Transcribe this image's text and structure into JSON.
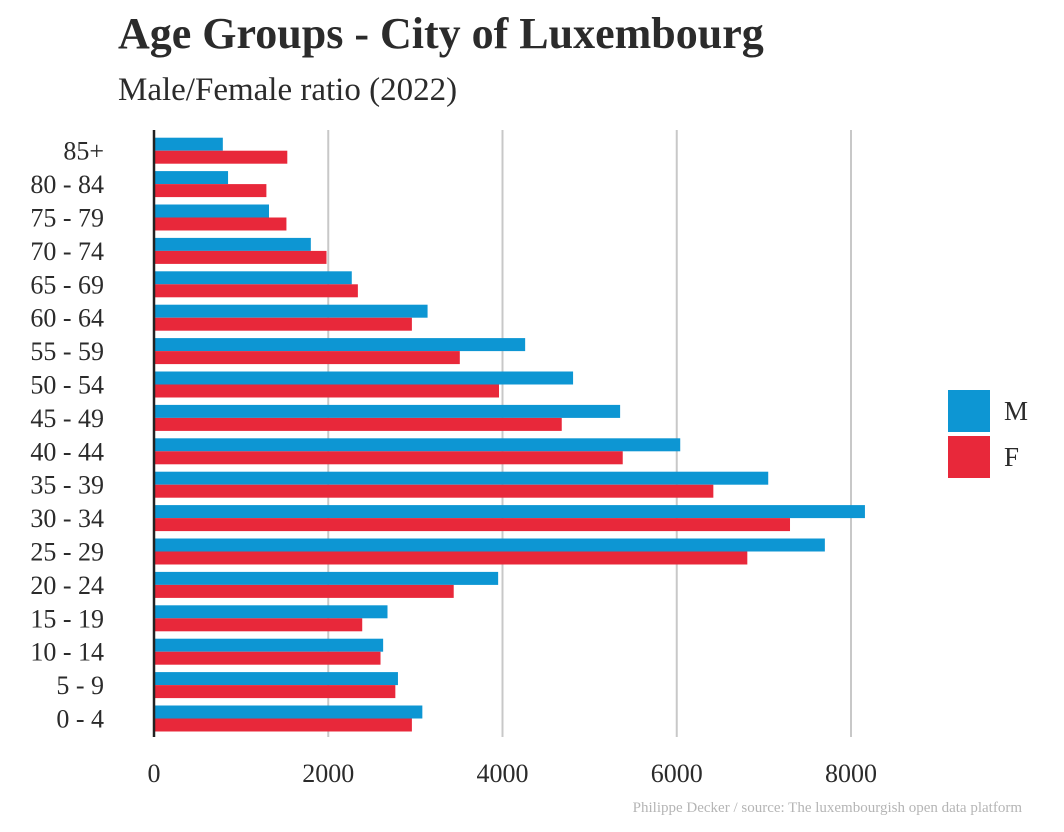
{
  "title": "Age Groups - City of Luxembourg",
  "subtitle": "Male/Female ratio (2022)",
  "caption": "Philippe Decker / source: The luxembourgish open data platform",
  "colors": {
    "M": "#0d96d3",
    "F": "#e8283a",
    "grid": "#c8c8c8",
    "axis": "#222222",
    "text": "#2b2b2b"
  },
  "legend": [
    {
      "label": "M",
      "color": "#0d96d3"
    },
    {
      "label": "F",
      "color": "#e8283a"
    }
  ],
  "chart_data": {
    "type": "bar",
    "orientation": "horizontal",
    "title": "Age Groups - City of Luxembourg",
    "subtitle": "Male/Female ratio (2022)",
    "categories": [
      "0 - 4",
      "5 - 9",
      "10 - 14",
      "15 - 19",
      "20 - 24",
      "25 - 29",
      "30 - 34",
      "35 - 39",
      "40 - 44",
      "45 - 49",
      "50 - 54",
      "55 - 59",
      "60 - 64",
      "65 - 69",
      "70 - 74",
      "75 - 79",
      "80 - 84",
      "85+"
    ],
    "series": [
      {
        "name": "M",
        "color": "#0d96d3",
        "values": [
          3080,
          2800,
          2630,
          2680,
          3950,
          7700,
          8160,
          7050,
          6040,
          5350,
          4810,
          4260,
          3140,
          2270,
          1800,
          1320,
          850,
          790
        ]
      },
      {
        "name": "F",
        "color": "#e8283a",
        "values": [
          2960,
          2770,
          2600,
          2390,
          3440,
          6810,
          7300,
          6420,
          5380,
          4680,
          3960,
          3510,
          2960,
          2340,
          1980,
          1520,
          1290,
          1530
        ]
      }
    ],
    "xticks": [
      0,
      2000,
      4000,
      6000,
      8000
    ],
    "xlim": [
      0,
      9600
    ],
    "xlabel": "",
    "ylabel": "",
    "grid": "vertical major",
    "legend_position": "right"
  }
}
